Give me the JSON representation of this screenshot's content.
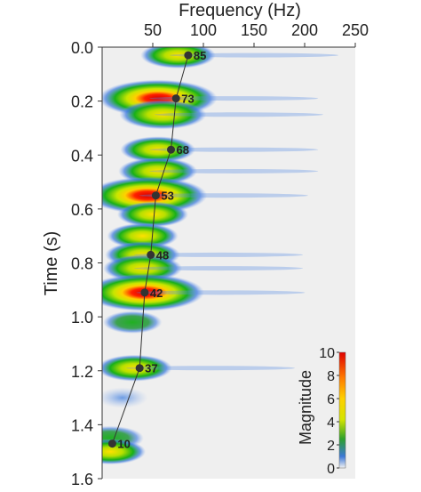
{
  "chart_data": {
    "type": "heatmap",
    "title": "",
    "xlabel": "Frequency (Hz)",
    "ylabel": "Time (s)",
    "xlim": [
      0,
      250
    ],
    "ylim": [
      0,
      1.6
    ],
    "x_ticks": [
      "50",
      "100",
      "150",
      "200",
      "250"
    ],
    "y_ticks": [
      "0.0",
      "0.2",
      "0.4",
      "0.6",
      "0.8",
      "1.0",
      "1.2",
      "1.4",
      "1.6"
    ],
    "x_axis_position": "top",
    "y_axis_inverted": true,
    "colorbar": {
      "label": "Magnitude",
      "range": [
        0,
        10
      ],
      "ticks": [
        "0",
        "2",
        "4",
        "6",
        "8",
        "10"
      ],
      "colors": [
        "#f2f2f2",
        "#3c78d8",
        "#2ca02c",
        "#d4e400",
        "#ffd000",
        "#ff7a00",
        "#e00000"
      ]
    },
    "peak_frequency_series": {
      "color": "#333333",
      "points": [
        {
          "time": 0.03,
          "freq": 85,
          "label": "85"
        },
        {
          "time": 0.19,
          "freq": 73,
          "label": "73"
        },
        {
          "time": 0.38,
          "freq": 68,
          "label": "68"
        },
        {
          "time": 0.55,
          "freq": 53,
          "label": "53"
        },
        {
          "time": 0.77,
          "freq": 48,
          "label": "48"
        },
        {
          "time": 0.91,
          "freq": 42,
          "label": "42"
        },
        {
          "time": 1.19,
          "freq": 37,
          "label": "37"
        },
        {
          "time": 1.47,
          "freq": 10,
          "label": "10"
        }
      ]
    },
    "energy_blobs": [
      {
        "time": 0.03,
        "freq": 75,
        "magnitude": 4.5
      },
      {
        "time": 0.19,
        "freq": 55,
        "magnitude": 10
      },
      {
        "time": 0.25,
        "freq": 60,
        "magnitude": 6
      },
      {
        "time": 0.38,
        "freq": 55,
        "magnitude": 4.5
      },
      {
        "time": 0.46,
        "freq": 55,
        "magnitude": 5
      },
      {
        "time": 0.55,
        "freq": 45,
        "magnitude": 10
      },
      {
        "time": 0.62,
        "freq": 50,
        "magnitude": 4
      },
      {
        "time": 0.7,
        "freq": 40,
        "magnitude": 4
      },
      {
        "time": 0.77,
        "freq": 40,
        "magnitude": 4.5
      },
      {
        "time": 0.82,
        "freq": 40,
        "magnitude": 5
      },
      {
        "time": 0.91,
        "freq": 42,
        "magnitude": 10
      },
      {
        "time": 1.02,
        "freq": 30,
        "magnitude": 2.5
      },
      {
        "time": 1.19,
        "freq": 32,
        "magnitude": 4.5
      },
      {
        "time": 1.3,
        "freq": 20,
        "magnitude": 1.5
      },
      {
        "time": 1.45,
        "freq": 8,
        "magnitude": 3.5
      },
      {
        "time": 1.5,
        "freq": 8,
        "magnitude": 4
      }
    ]
  }
}
